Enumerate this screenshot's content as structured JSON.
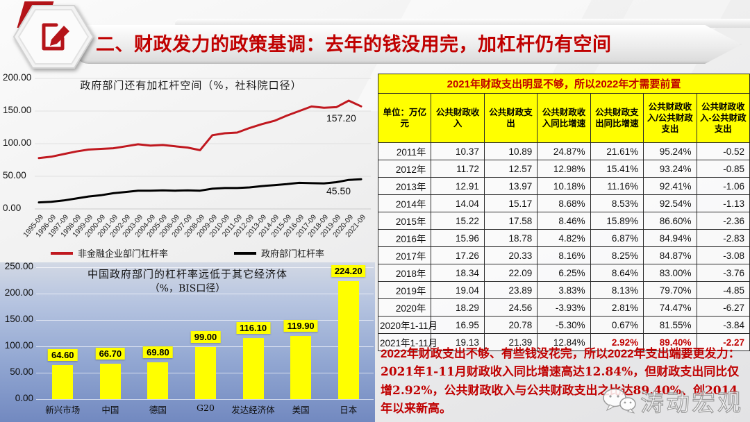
{
  "header": {
    "title": "二、财政发力的政策基调：去年的钱没用完，加杠杆仍有空间",
    "title_color": "#c00000"
  },
  "chart_data": [
    {
      "type": "line",
      "title": "政府部门还有加杠杆空间（%，社科院口径）",
      "x": [
        "1995-09",
        "1996-09",
        "1997-09",
        "1998-09",
        "1999-09",
        "2000-09",
        "2001-09",
        "2002-09",
        "2003-09",
        "2004-09",
        "2005-09",
        "2006-09",
        "2007-09",
        "2008-09",
        "2009-09",
        "2010-09",
        "2011-09",
        "2012-09",
        "2013-09",
        "2014-09",
        "2015-09",
        "2016-09",
        "2017-09",
        "2018-09",
        "2019-09",
        "2020-09",
        "2021-09"
      ],
      "ylim": [
        0,
        200
      ],
      "yticks": [
        200,
        150,
        100,
        50,
        0
      ],
      "ytick_labels": [
        "200.00",
        "150.00",
        "100.00",
        "50.00",
        "0.00"
      ],
      "grid": true,
      "legend_position": "bottom",
      "series": [
        {
          "name": "非金融企业部门杠杆率",
          "color": "#c0181f",
          "end_label": "157.20",
          "values": [
            78,
            80,
            84,
            88,
            91,
            92,
            93,
            96,
            99,
            97,
            98,
            96,
            94,
            90,
            113,
            116,
            117,
            124,
            130,
            135,
            143,
            150,
            157,
            155,
            156,
            166,
            157.2
          ]
        },
        {
          "name": "政府部门杠杆率",
          "color": "#000000",
          "end_label": "45.50",
          "values": [
            10,
            11,
            13,
            16,
            19,
            21,
            24,
            26,
            28,
            28,
            28.5,
            28,
            28.5,
            28,
            31,
            32,
            32,
            33,
            35,
            36.5,
            38,
            40,
            39.5,
            39,
            41,
            44.5,
            45.5
          ]
        }
      ]
    },
    {
      "type": "bar",
      "title": "中国政府部门的杠杆率远低于其它经济体",
      "subtitle": "（%，BIS口径）",
      "categories": [
        "新兴市场",
        "中国",
        "德国",
        "G20",
        "发达经济体",
        "美国",
        "日本"
      ],
      "values": [
        64.6,
        66.7,
        69.8,
        99.0,
        116.1,
        119.9,
        224.2
      ],
      "value_labels": [
        "64.60",
        "66.70",
        "69.80",
        "99.00",
        "116.10",
        "119.90",
        "224.20"
      ],
      "bar_color": "#ffff00",
      "ylim": [
        0,
        250
      ],
      "yticks": [
        250,
        200,
        150,
        100,
        50,
        0
      ],
      "ytick_labels": [
        "250.00",
        "200.00",
        "150.00",
        "100.00",
        "50.00",
        "0.00"
      ],
      "grid": true
    },
    {
      "type": "table",
      "title": "2021年财政支出明显不够，所以2022年才需要前置",
      "columns": [
        "单位：万亿元",
        "公共财政收入",
        "公共财政支出",
        "公共财政收入同比增速",
        "公共财政支出同比增速",
        "公共财政收入/公共财政支出",
        "公共财政收入-公共财政支出"
      ],
      "rows": [
        [
          "2011年",
          "10.37",
          "10.89",
          "24.87%",
          "21.61%",
          "95.24%",
          "-0.52"
        ],
        [
          "2012年",
          "11.72",
          "12.57",
          "12.98%",
          "15.41%",
          "93.24%",
          "-0.85"
        ],
        [
          "2013年",
          "12.91",
          "13.97",
          "10.18%",
          "11.16%",
          "92.41%",
          "-1.06"
        ],
        [
          "2014年",
          "14.04",
          "15.17",
          "8.68%",
          "8.53%",
          "92.54%",
          "-1.13"
        ],
        [
          "2015年",
          "15.22",
          "17.58",
          "8.46%",
          "15.89%",
          "86.60%",
          "-2.36"
        ],
        [
          "2016年",
          "15.96",
          "18.78",
          "4.82%",
          "6.87%",
          "84.94%",
          "-2.83"
        ],
        [
          "2017年",
          "17.26",
          "20.33",
          "8.16%",
          "8.25%",
          "84.87%",
          "-3.08"
        ],
        [
          "2018年",
          "18.34",
          "22.09",
          "6.25%",
          "8.64%",
          "83.00%",
          "-3.76"
        ],
        [
          "2019年",
          "19.04",
          "23.89",
          "3.83%",
          "8.13%",
          "79.70%",
          "-4.85"
        ],
        [
          "2020年",
          "18.29",
          "24.56",
          "-3.93%",
          "2.81%",
          "74.47%",
          "-6.27"
        ],
        [
          "2020年1-11月",
          "16.95",
          "20.78",
          "-5.30%",
          "0.67%",
          "81.55%",
          "-3.84"
        ],
        [
          "2021年1-11月",
          "19.13",
          "21.39",
          "12.84%",
          "2.92%",
          "89.40%",
          "-2.27"
        ]
      ],
      "highlight": {
        "row": 11,
        "cols": [
          4,
          5,
          6
        ],
        "color": "#c00000"
      }
    }
  ],
  "commentary": {
    "lead": "2022年财政支出不够、有些钱没花完，所以2022年支出端要更发力：",
    "body": "2021年1-11月财政收入同比增速高达12.84%，但财政支出同比仅增2.92%，公共财政收入与公共财政支出之比达89.40%、创2014年以来新高。",
    "color": "#c00000"
  },
  "watermark": {
    "text": "涛动宏观",
    "icon": "wechat-icon"
  }
}
